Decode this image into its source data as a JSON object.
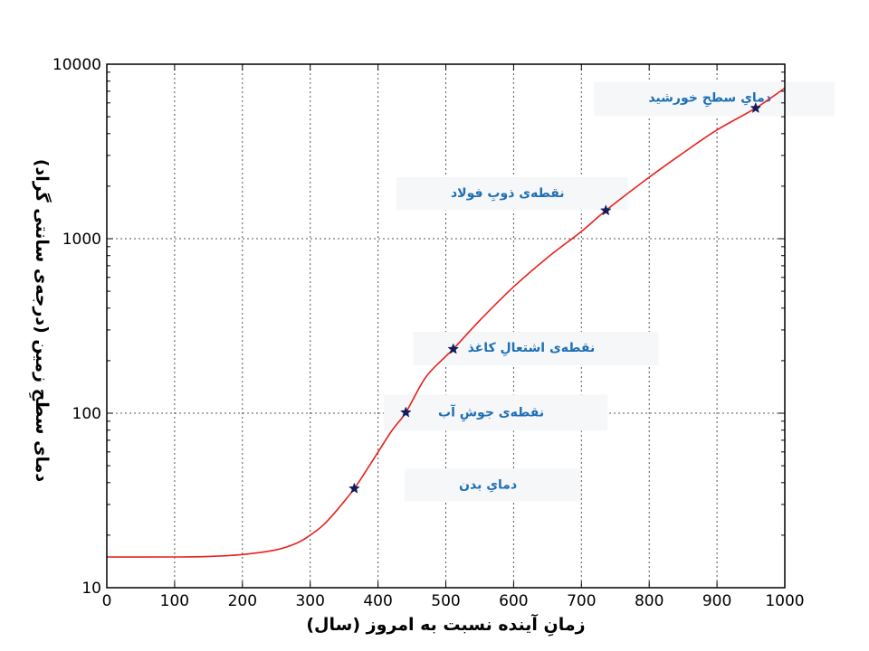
{
  "colors": {
    "curve": "#e8201f",
    "marker": "#141a5c",
    "annotation_text": "#1f6fb5",
    "annotation_bg": "#f5f7f9",
    "grid": "#555555",
    "axis": "#000000"
  },
  "chart_data": {
    "type": "line",
    "xlabel": "زمانِ آینده نسبت به امروز (سال)",
    "ylabel": "دمای سطحِ زمین (درجه‌ی سانتی گراد)",
    "xlim": [
      0,
      1000
    ],
    "ylim": [
      10,
      10000
    ],
    "yscale": "log",
    "grid": true,
    "x_ticks": [
      0,
      100,
      200,
      300,
      400,
      500,
      600,
      700,
      800,
      900,
      1000
    ],
    "y_ticks": [
      10,
      100,
      1000,
      10000
    ],
    "series": [
      {
        "x": [
          0,
          100,
          150,
          200,
          250,
          280,
          300,
          320,
          340,
          365,
          390,
          420,
          441,
          470,
          500,
          511,
          550,
          600,
          650,
          700,
          736,
          800,
          850,
          900,
          957,
          1000
        ],
        "y": [
          15,
          15,
          15.1,
          15.5,
          16.5,
          18,
          20,
          23,
          28,
          37,
          52,
          79,
          101,
          160,
          212,
          233,
          340,
          530,
          780,
          1100,
          1450,
          2250,
          3100,
          4200,
          5600,
          7300
        ]
      }
    ],
    "points": [
      {
        "label": "دمایِ بدن",
        "x": 365,
        "y": 37
      },
      {
        "label": "نقطه‌ی جوشِ آب",
        "x": 441,
        "y": 101
      },
      {
        "label": "نقطه‌ی اشتعالِ کاغذ",
        "x": 511,
        "y": 233
      },
      {
        "label": "نقطه‌ی ذوبِ فولاد",
        "x": 736,
        "y": 1450
      },
      {
        "label": "دمایِ سطحِ خورشید",
        "x": 957,
        "y": 5600
      }
    ],
    "annotations": [
      {
        "text": "دمایِ سطحِ خورشید",
        "x": 980,
        "y": 6100
      },
      {
        "text": "نقطه‌ی ذوبِ فولاد",
        "x": 675,
        "y": 1730
      },
      {
        "text": "نقطه‌ی اشتعالِ کاغذ",
        "x": 720,
        "y": 225
      },
      {
        "text": "نقطه‌ی جوشِ آب",
        "x": 645,
        "y": 96
      },
      {
        "text": "دمایِ بدن",
        "x": 605,
        "y": 37
      }
    ]
  }
}
